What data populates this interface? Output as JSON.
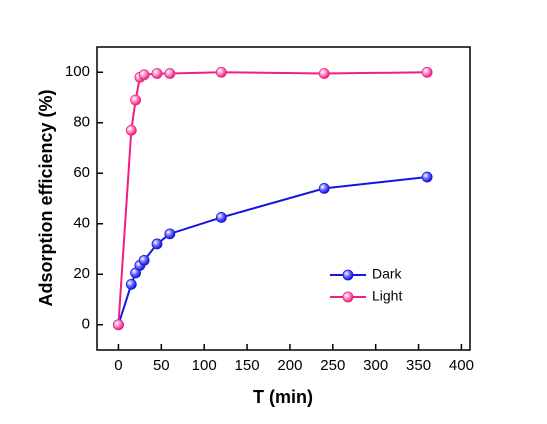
{
  "chart_data": {
    "type": "line",
    "x_label": "T (min)",
    "y_label": "Adsorption efficiency (%)",
    "xlim": [
      -25,
      410
    ],
    "xticks": [
      0,
      50,
      100,
      150,
      200,
      250,
      300,
      350,
      400
    ],
    "ylim": [
      -10,
      110
    ],
    "yticks": [
      0,
      20,
      40,
      60,
      80,
      100
    ],
    "x": [
      0,
      15,
      20,
      25,
      30,
      45,
      60,
      120,
      240,
      360
    ],
    "series": [
      {
        "name": "Dark",
        "color": "#1515e0",
        "values": [
          0,
          16,
          20.5,
          23.5,
          25.5,
          32,
          36,
          42.5,
          54,
          58.5
        ]
      },
      {
        "name": "Light",
        "color": "#ee1f7f",
        "values": [
          0,
          77,
          89,
          98,
          99,
          99.5,
          99.5,
          100,
          99.5,
          100
        ]
      }
    ],
    "legend": "lower right",
    "grid": false
  }
}
